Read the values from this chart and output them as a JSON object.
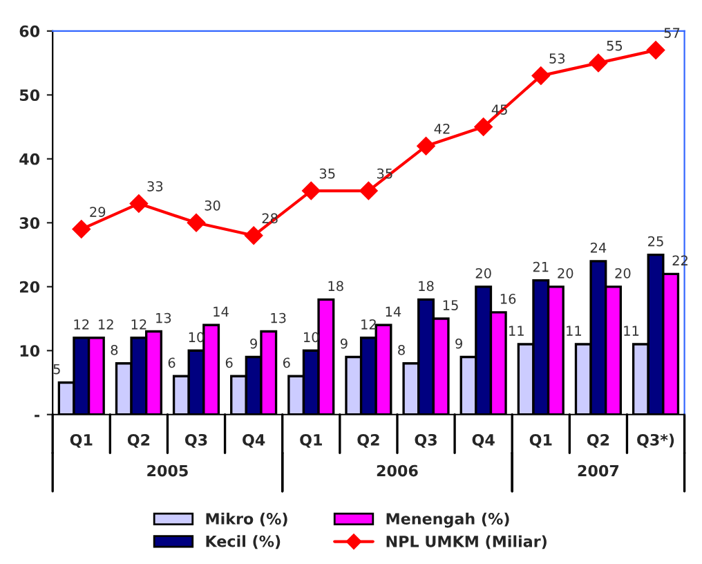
{
  "chart_data": {
    "type": "bar",
    "categories": [
      "Q1",
      "Q2",
      "Q3",
      "Q4",
      "Q1",
      "Q2",
      "Q3",
      "Q4",
      "Q1",
      "Q2",
      "Q3*)"
    ],
    "series": [
      {
        "name": "Mikro (%)",
        "color": "#ccccff",
        "values": [
          5,
          8,
          6,
          6,
          6,
          9,
          8,
          9,
          11,
          11,
          11
        ]
      },
      {
        "name": "Kecil (%)",
        "color": "#000080",
        "values": [
          12,
          12,
          10,
          9,
          10,
          12,
          18,
          20,
          21,
          24,
          25
        ]
      },
      {
        "name": "Menengah (%)",
        "color": "#ff00ff",
        "values": [
          12,
          13,
          14,
          13,
          18,
          14,
          15,
          16,
          20,
          20,
          22
        ]
      },
      {
        "name": "NPL UMKM (Miliar)",
        "type": "line",
        "color": "#ff0000",
        "marker": "diamond",
        "values": [
          29,
          33,
          30,
          28,
          35,
          35,
          42,
          45,
          53,
          55,
          57
        ]
      }
    ],
    "annotations": [
      "2005",
      "2006",
      "2007"
    ],
    "ylim": [
      0,
      60
    ],
    "yticks": [
      {
        "value": 0,
        "label": "-"
      },
      10,
      20,
      30,
      40,
      50,
      60
    ],
    "data_labels": true,
    "grid": false,
    "legend": "bottom"
  }
}
